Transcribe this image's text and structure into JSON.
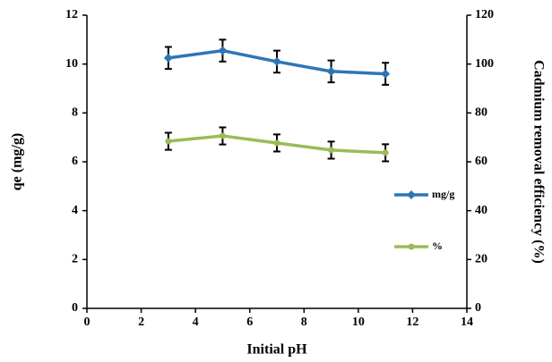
{
  "chart_data": {
    "type": "line",
    "x_label": "Initial pH",
    "y_label": "qe (mg/g)",
    "y2_label": "Cadmium removal efficiency (%)",
    "x": [
      3,
      5,
      7,
      9,
      11
    ],
    "xlim": [
      0,
      14
    ],
    "xticks": [
      0,
      2,
      4,
      6,
      8,
      10,
      12,
      14
    ],
    "ylim": [
      0,
      12
    ],
    "yticks": [
      0,
      2,
      4,
      6,
      8,
      10,
      12
    ],
    "y2lim": [
      0,
      120
    ],
    "y2ticks": [
      0,
      20,
      40,
      60,
      80,
      100,
      120
    ],
    "grid": false,
    "legend": "right",
    "series": [
      {
        "name": "mg/g",
        "color": "#2e75b6",
        "marker": "diamond",
        "values": [
          10.25,
          10.55,
          10.1,
          9.7,
          9.6
        ],
        "errors": [
          0.45,
          0.45,
          0.45,
          0.45,
          0.45
        ]
      },
      {
        "name": "%",
        "color": "#9bbb59",
        "marker": "circle",
        "axis": "y2",
        "values": [
          68.4,
          70.6,
          67.7,
          64.8,
          63.7
        ],
        "errors": [
          3.5,
          3.5,
          3.5,
          3.5,
          3.5
        ]
      }
    ]
  }
}
